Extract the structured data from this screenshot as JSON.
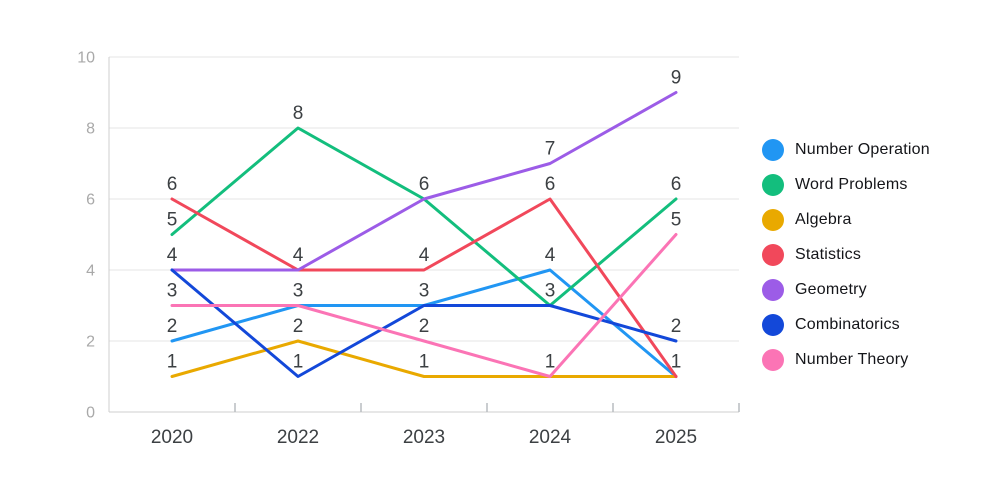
{
  "page": {
    "background": "#ffffff"
  },
  "chart_data": {
    "type": "line",
    "title": "",
    "xlabel": "",
    "ylabel": "",
    "categories": [
      "2020",
      "2022",
      "2023",
      "2024",
      "2025"
    ],
    "series": [
      {
        "name": "Number Operation",
        "color": "#2196F3",
        "values": [
          2,
          3,
          3,
          4,
          1
        ]
      },
      {
        "name": "Word Problems",
        "color": "#13BE7D",
        "values": [
          5,
          8,
          6,
          3,
          6
        ]
      },
      {
        "name": "Algebra",
        "color": "#E9A900",
        "values": [
          1,
          2,
          1,
          1,
          1
        ]
      },
      {
        "name": "Statistics",
        "color": "#F1485B",
        "values": [
          6,
          4,
          4,
          6,
          1
        ]
      },
      {
        "name": "Geometry",
        "color": "#9C5CE7",
        "values": [
          4,
          4,
          6,
          7,
          9
        ]
      },
      {
        "name": "Combinatorics",
        "color": "#1348D9",
        "values": [
          4,
          1,
          3,
          3,
          2
        ]
      },
      {
        "name": "Number Theory",
        "color": "#FB74B5",
        "values": [
          3,
          3,
          2,
          1,
          5
        ]
      }
    ],
    "ylim": [
      0,
      10
    ],
    "yticks": [
      0,
      2,
      4,
      6,
      8,
      10
    ],
    "grid": true,
    "show_point_labels": true,
    "point_label_rule": "one label per unique value at each x",
    "legend_position": "right",
    "markers": "none"
  },
  "styles": {
    "grid_color": "#e5e5e5",
    "axis_color": "#cfcfcf",
    "tick_color": "#b9bcc0",
    "x_label_color": "#3c4043",
    "y_label_color": "#a9a9a9",
    "point_label_color": "#3c4043",
    "legend_text_color": "#141519",
    "line_width": 3
  }
}
